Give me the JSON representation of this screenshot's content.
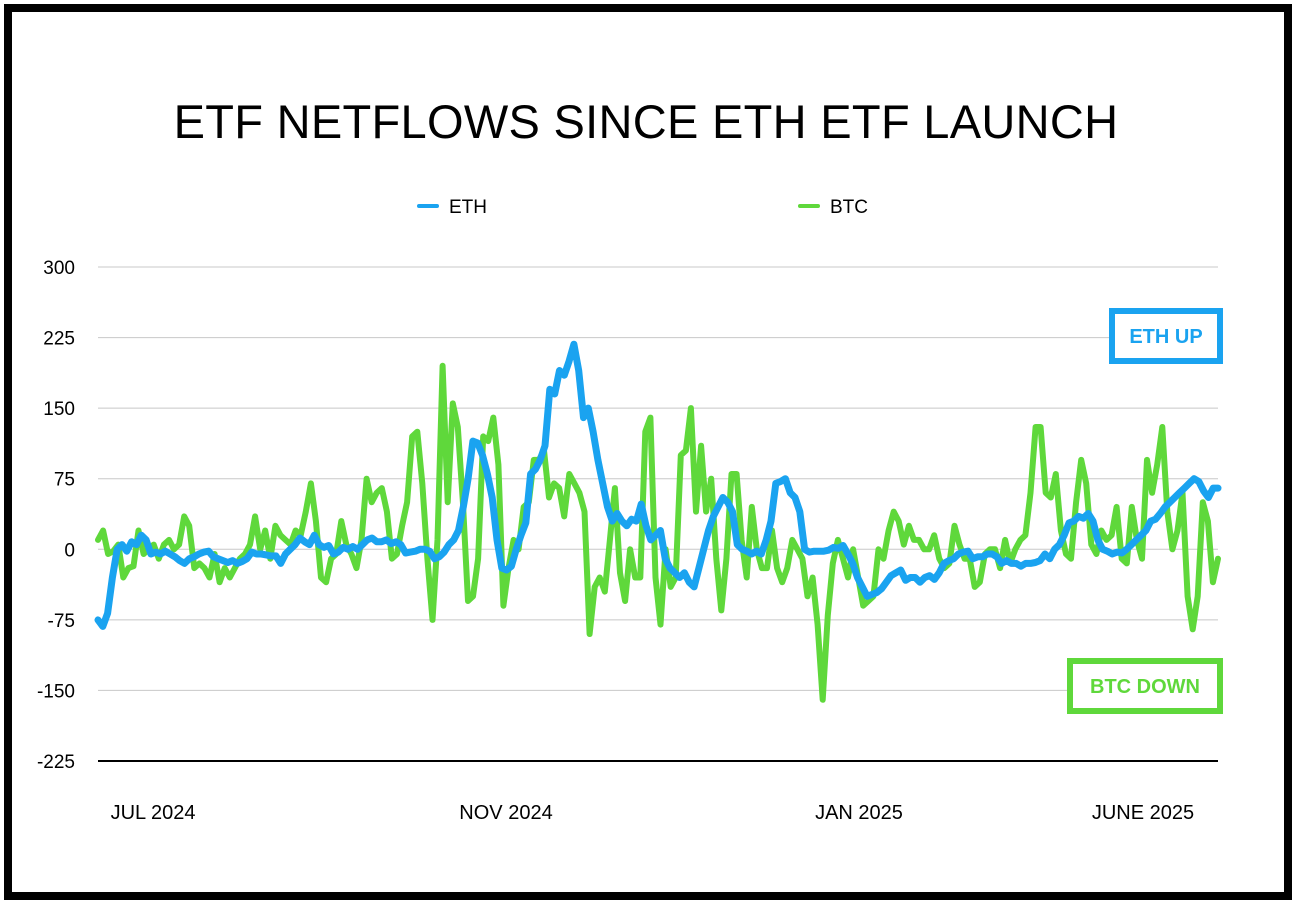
{
  "chart_data": {
    "type": "line",
    "title": "ETF NETFLOWS SINCE ETH ETF LAUNCH",
    "xlabel": "",
    "ylabel": "",
    "ylim": [
      -225,
      300
    ],
    "yticks": [
      300,
      225,
      150,
      75,
      0,
      -75,
      -150,
      -225
    ],
    "xtick_labels": [
      "JUL 2024",
      "NOV 2024",
      "JAN 2025",
      "JUNE 2025"
    ],
    "grid": true,
    "legend_position": "top-center",
    "annotations": [
      {
        "text": "ETH UP",
        "color": "#1AA3F0"
      },
      {
        "text": "BTC DOWN",
        "color": "#5FD83B"
      }
    ],
    "series": [
      {
        "name": "ETH",
        "color": "#1AA3F0",
        "values": [
          -75,
          -82,
          -68,
          -30,
          0,
          5,
          -2,
          8,
          5,
          15,
          10,
          -5,
          -3,
          -5,
          -2,
          -5,
          -8,
          -12,
          -15,
          -10,
          -8,
          -5,
          -3,
          -2,
          -8,
          -10,
          -12,
          -14,
          -12,
          -15,
          -13,
          -10,
          -3,
          -5,
          -5,
          -6,
          -7,
          -7,
          -15,
          -5,
          0,
          5,
          12,
          8,
          5,
          15,
          5,
          2,
          4,
          -5,
          -3,
          2,
          0,
          3,
          0,
          5,
          10,
          12,
          8,
          8,
          10,
          6,
          8,
          5,
          -4,
          -3,
          -2,
          0,
          0,
          -2,
          -10,
          -8,
          -3,
          5,
          10,
          20,
          45,
          75,
          115,
          113,
          100,
          80,
          55,
          10,
          -20,
          -22,
          -18,
          0,
          15,
          28,
          80,
          85,
          95,
          110,
          170,
          165,
          190,
          185,
          200,
          218,
          190,
          140,
          150,
          125,
          95,
          70,
          45,
          30,
          38,
          30,
          25,
          32,
          30,
          48,
          25,
          10,
          15,
          20,
          -10,
          -20,
          -25,
          -30,
          -25,
          -35,
          -40,
          -20,
          0,
          20,
          35,
          45,
          55,
          50,
          40,
          5,
          0,
          -2,
          -5,
          -2,
          -5,
          10,
          30,
          70,
          72,
          75,
          60,
          55,
          40,
          0,
          -3,
          -2,
          -2,
          -2,
          -1,
          2,
          1,
          4,
          -5,
          -15,
          -30,
          -40,
          -50,
          -48,
          -46,
          -42,
          -35,
          -28,
          -25,
          -22,
          -33,
          -30,
          -30,
          -35,
          -30,
          -28,
          -32,
          -25,
          -15,
          -12,
          -10,
          -5,
          -3,
          -2,
          -10,
          -8,
          -8,
          -5,
          -5,
          -8,
          -15,
          -12,
          -15,
          -15,
          -18,
          -15,
          -15,
          -14,
          -12,
          -5,
          -10,
          0,
          5,
          15,
          28,
          30,
          35,
          33,
          38,
          30,
          10,
          0,
          -2,
          -5,
          -3,
          -4,
          0,
          5,
          10,
          15,
          20,
          30,
          32,
          38,
          45,
          50,
          55,
          60,
          65,
          70,
          75,
          72,
          62,
          55,
          65,
          65
        ]
      },
      {
        "name": "BTC",
        "color": "#5FD83B",
        "values": [
          10,
          20,
          -5,
          -2,
          5,
          -30,
          -20,
          -18,
          20,
          -5,
          0,
          5,
          -10,
          5,
          10,
          0,
          5,
          35,
          25,
          -20,
          -15,
          -20,
          -30,
          -5,
          -35,
          -20,
          -30,
          -20,
          -10,
          -5,
          5,
          35,
          0,
          20,
          -10,
          25,
          15,
          10,
          5,
          20,
          15,
          40,
          70,
          30,
          -30,
          -35,
          -10,
          -5,
          30,
          5,
          -5,
          -20,
          10,
          75,
          50,
          60,
          65,
          40,
          -10,
          -5,
          25,
          50,
          120,
          125,
          70,
          -10,
          -75,
          10,
          195,
          50,
          155,
          130,
          50,
          -55,
          -50,
          -10,
          120,
          115,
          140,
          90,
          -60,
          -20,
          10,
          0,
          45,
          50,
          95,
          95,
          105,
          55,
          70,
          65,
          35,
          80,
          70,
          60,
          40,
          -90,
          -40,
          -30,
          -45,
          10,
          65,
          -25,
          -55,
          0,
          -30,
          -30,
          125,
          140,
          -30,
          -80,
          0,
          -40,
          -30,
          100,
          105,
          150,
          40,
          110,
          40,
          75,
          -10,
          -65,
          -10,
          80,
          80,
          10,
          -30,
          45,
          0,
          -20,
          -20,
          20,
          -20,
          -35,
          -20,
          10,
          0,
          -10,
          -50,
          -30,
          -80,
          -160,
          -70,
          -15,
          10,
          -10,
          -30,
          0,
          -30,
          -60,
          -55,
          -50,
          0,
          -10,
          20,
          40,
          30,
          5,
          25,
          10,
          10,
          0,
          0,
          15,
          -10,
          -20,
          -15,
          25,
          5,
          -10,
          -10,
          -40,
          -35,
          -5,
          0,
          0,
          -20,
          10,
          -15,
          0,
          10,
          15,
          60,
          130,
          130,
          60,
          55,
          80,
          20,
          -5,
          -10,
          50,
          95,
          70,
          5,
          -5,
          20,
          10,
          15,
          45,
          -10,
          -15,
          45,
          10,
          -10,
          95,
          60,
          90,
          130,
          40,
          0,
          20,
          60,
          -50,
          -85,
          -50,
          50,
          30,
          -35,
          -10
        ]
      }
    ]
  }
}
